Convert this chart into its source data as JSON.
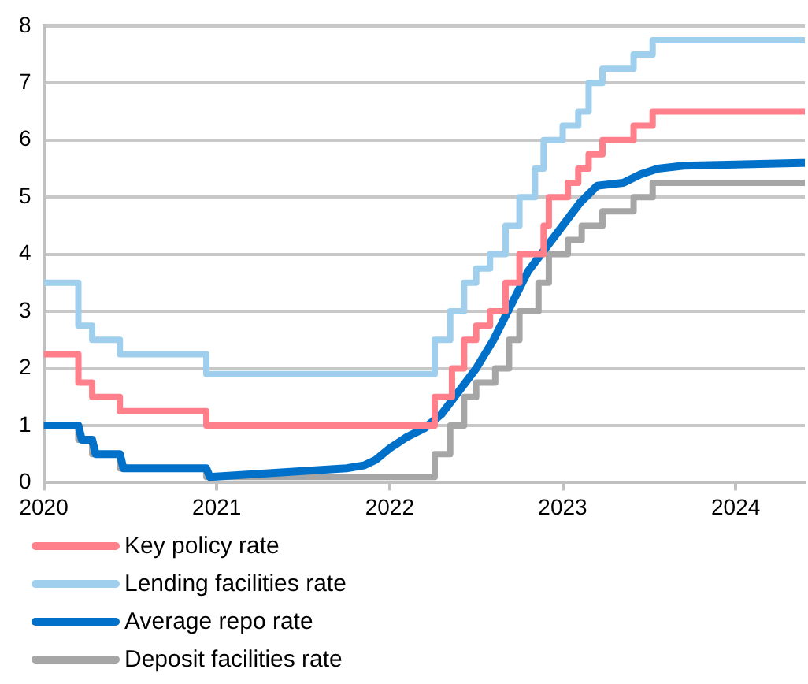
{
  "chart_data": {
    "type": "step",
    "xlim": [
      2020,
      2024.4
    ],
    "xticks": [
      2020,
      2021,
      2022,
      2023,
      2024
    ],
    "ylim": [
      0,
      8
    ],
    "yticks": [
      0,
      1,
      2,
      3,
      4,
      5,
      6,
      7,
      8
    ],
    "grid": "y",
    "legend": "bottom",
    "series": [
      {
        "name": "Key policy rate",
        "color": "#ff7f8a",
        "x": [
          2020,
          2020.2,
          2020.28,
          2020.44,
          2020.94,
          2022.26,
          2022.36,
          2022.43,
          2022.5,
          2022.58,
          2022.67,
          2022.75,
          2022.89,
          2022.92,
          2023.03,
          2023.09,
          2023.15,
          2023.23,
          2023.41,
          2023.52,
          2024.4
        ],
        "values": [
          2.25,
          1.75,
          1.5,
          1.25,
          1.0,
          1.5,
          2.0,
          2.5,
          2.75,
          3.0,
          3.5,
          4.0,
          4.5,
          5.0,
          5.25,
          5.5,
          5.75,
          6.0,
          6.25,
          6.5,
          6.5
        ]
      },
      {
        "name": "Lending facilities rate",
        "color": "#9fcfec",
        "x": [
          2020,
          2020.2,
          2020.28,
          2020.44,
          2020.94,
          2022.26,
          2022.35,
          2022.43,
          2022.5,
          2022.58,
          2022.67,
          2022.75,
          2022.84,
          2022.89,
          2023.0,
          2023.09,
          2023.15,
          2023.23,
          2023.41,
          2023.52,
          2024.4
        ],
        "values": [
          3.5,
          2.75,
          2.5,
          2.25,
          1.9,
          2.5,
          3.0,
          3.5,
          3.75,
          4.0,
          4.5,
          5.0,
          5.5,
          6.0,
          6.25,
          6.5,
          7.0,
          7.25,
          7.5,
          7.75,
          7.75
        ]
      },
      {
        "name": "Average repo rate",
        "type": "line",
        "color": "#0070c8",
        "x": [
          2020,
          2020.2,
          2020.22,
          2020.28,
          2020.3,
          2020.44,
          2020.46,
          2020.94,
          2020.96,
          2021.75,
          2021.85,
          2021.92,
          2022.0,
          2022.1,
          2022.2,
          2022.3,
          2022.4,
          2022.5,
          2022.6,
          2022.7,
          2022.8,
          2022.9,
          2023.0,
          2023.1,
          2023.2,
          2023.35,
          2023.45,
          2023.55,
          2023.7,
          2024.0,
          2024.4
        ],
        "values": [
          1.0,
          1.0,
          0.75,
          0.75,
          0.5,
          0.5,
          0.25,
          0.25,
          0.1,
          0.25,
          0.3,
          0.4,
          0.6,
          0.8,
          0.95,
          1.2,
          1.6,
          2.0,
          2.5,
          3.1,
          3.7,
          4.1,
          4.5,
          4.9,
          5.2,
          5.25,
          5.4,
          5.5,
          5.55,
          5.57,
          5.6
        ]
      },
      {
        "name": "Deposit facilities rate",
        "color": "#a6a6a6",
        "x": [
          2020,
          2020.2,
          2020.28,
          2020.44,
          2020.94,
          2022.26,
          2022.35,
          2022.43,
          2022.5,
          2022.61,
          2022.69,
          2022.75,
          2022.86,
          2022.92,
          2023.03,
          2023.11,
          2023.23,
          2023.41,
          2023.52,
          2024.4
        ],
        "values": [
          1.0,
          0.75,
          0.5,
          0.25,
          0.1,
          0.5,
          1.0,
          1.5,
          1.75,
          2.0,
          2.5,
          3.0,
          3.5,
          4.0,
          4.25,
          4.5,
          4.75,
          5.0,
          5.25,
          5.25
        ]
      }
    ]
  }
}
